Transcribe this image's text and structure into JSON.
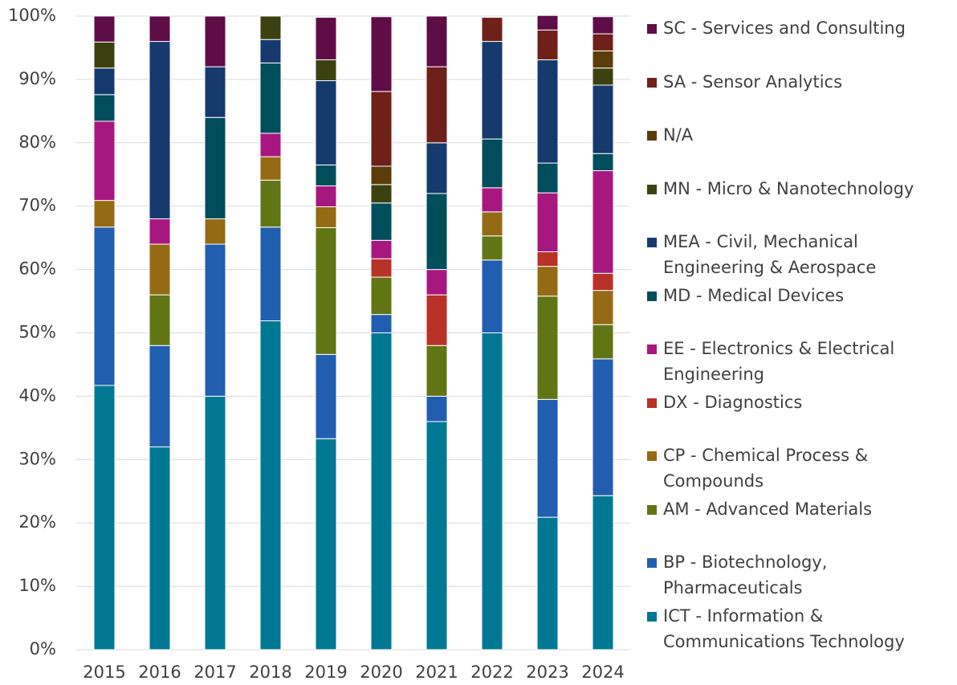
{
  "chart_data": {
    "type": "stacked_bar",
    "categories": [
      "2015",
      "2016",
      "2017",
      "2018",
      "2019",
      "2020",
      "2021",
      "2022",
      "2023",
      "2024"
    ],
    "series": [
      {
        "name": "ICT - Information & Communications Technology",
        "color": "#007894",
        "values": [
          41.7,
          32,
          40,
          51.9,
          33.3,
          50,
          36,
          50,
          20.9,
          24.3
        ]
      },
      {
        "name": "BP - Biotechnology, Pharmaceuticals",
        "color": "#225eb0",
        "values": [
          25,
          16,
          24,
          14.8,
          13.3,
          2.9,
          4,
          11.5,
          18.6,
          21.6
        ]
      },
      {
        "name": "AM - Advanced Materials",
        "color": "#627515",
        "values": [
          0,
          8,
          0,
          7.4,
          20,
          5.9,
          8,
          3.8,
          16.3,
          5.4
        ]
      },
      {
        "name": "CP - Chemical Process & Compounds",
        "color": "#956a14",
        "values": [
          4.2,
          8,
          4,
          3.7,
          3.3,
          0,
          0,
          3.8,
          4.7,
          5.4
        ]
      },
      {
        "name": "DX - Diagnostics",
        "color": "#b83228",
        "values": [
          0,
          0,
          0,
          0,
          0,
          2.9,
          8,
          0,
          2.3,
          2.7
        ]
      },
      {
        "name": "EE - Electronics & Electrical Engineering",
        "color": "#a8177f",
        "values": [
          12.5,
          4,
          0,
          3.7,
          3.3,
          2.9,
          4,
          3.8,
          9.3,
          16.2
        ]
      },
      {
        "name": "MD - Medical Devices",
        "color": "#004d5b",
        "values": [
          4.2,
          0,
          16,
          11.1,
          3.3,
          5.9,
          12,
          7.7,
          4.7,
          2.7
        ]
      },
      {
        "name": "MEA - Civil, Mechanical Engineering & Aerospace",
        "color": "#163a6e",
        "values": [
          4.2,
          28,
          8,
          3.7,
          13.3,
          0,
          8,
          15.4,
          16.3,
          10.8
        ]
      },
      {
        "name": "MN - Micro & Nanotechnology",
        "color": "#3b4110",
        "values": [
          4.1,
          0,
          0,
          3.7,
          3.3,
          2.9,
          0,
          0,
          0,
          2.7
        ]
      },
      {
        "name": "N/A",
        "color": "#5b3d0c",
        "values": [
          0,
          0,
          0,
          0,
          0,
          2.9,
          0,
          0,
          0,
          2.7
        ]
      },
      {
        "name": "SA - Sensor Analytics",
        "color": "#6e2019",
        "values": [
          0,
          0,
          0,
          0,
          0,
          11.8,
          12,
          3.8,
          4.7,
          2.7
        ]
      },
      {
        "name": "SC - Services and Consulting",
        "color": "#5e0d47",
        "values": [
          4.1,
          4,
          8,
          0,
          6.7,
          11.8,
          8,
          0,
          2.3,
          2.7
        ]
      }
    ],
    "ylim": [
      0,
      100
    ],
    "yticks": [
      {
        "value": 0,
        "label": "0%"
      },
      {
        "value": 10,
        "label": "10%"
      },
      {
        "value": 20,
        "label": "20%"
      },
      {
        "value": 30,
        "label": "30%"
      },
      {
        "value": 40,
        "label": "40%"
      },
      {
        "value": 50,
        "label": "50%"
      },
      {
        "value": 60,
        "label": "60%"
      },
      {
        "value": 70,
        "label": "70%"
      },
      {
        "value": 80,
        "label": "80%"
      },
      {
        "value": 90,
        "label": "90%"
      },
      {
        "value": 100,
        "label": "100%"
      }
    ],
    "grid": true,
    "legend": "right"
  }
}
